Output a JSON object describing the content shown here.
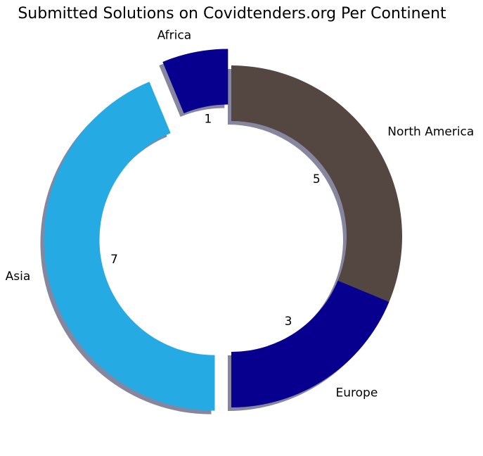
{
  "chart_data": {
    "type": "pie",
    "title": "Submitted Solutions on Covidtenders.org Per Continent",
    "categories": [
      "North America",
      "Europe",
      "Asia",
      "Africa"
    ],
    "values": [
      5,
      3,
      7,
      1
    ],
    "colors": [
      "#544741",
      "#07008f",
      "#26aae3",
      "#07008f"
    ],
    "exploded": [
      false,
      false,
      true,
      true
    ],
    "donut": true,
    "shadow": true,
    "legend": "none"
  }
}
